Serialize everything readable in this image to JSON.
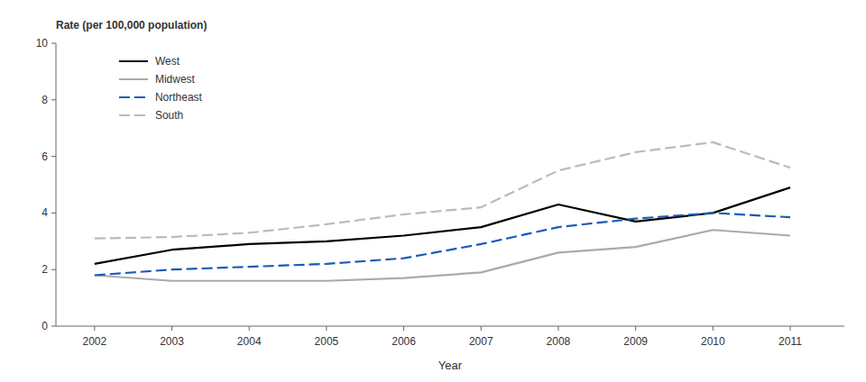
{
  "chart_data": {
    "type": "line",
    "ylabel": "Rate (per 100,000 population)",
    "xlabel": "Year",
    "x": [
      2002,
      2003,
      2004,
      2005,
      2006,
      2007,
      2008,
      2009,
      2010,
      2011
    ],
    "series": [
      {
        "name": "West",
        "color": "#000000",
        "line_style": "solid",
        "values": [
          2.2,
          2.7,
          2.9,
          3.0,
          3.2,
          3.5,
          4.3,
          3.7,
          4.0,
          4.9
        ]
      },
      {
        "name": "Midwest",
        "color": "#aaaaaa",
        "line_style": "solid",
        "values": [
          1.8,
          1.6,
          1.6,
          1.6,
          1.7,
          1.9,
          2.6,
          2.8,
          3.4,
          3.2
        ]
      },
      {
        "name": "Northeast",
        "color": "#1f5ab5",
        "line_style": "dashed",
        "values": [
          1.8,
          2.0,
          2.1,
          2.2,
          2.4,
          2.9,
          3.5,
          3.8,
          4.0,
          3.85
        ]
      },
      {
        "name": "South",
        "color": "#bbbbbb",
        "line_style": "dashed",
        "values": [
          3.1,
          3.15,
          3.3,
          3.6,
          3.95,
          4.2,
          5.5,
          6.15,
          6.5,
          5.6
        ]
      }
    ],
    "xlim": [
      2001.5,
      2011.7
    ],
    "xticks": [
      2002,
      2003,
      2004,
      2005,
      2006,
      2007,
      2008,
      2009,
      2010,
      2011
    ],
    "ylim": [
      0,
      10
    ],
    "yticks": [
      0,
      2,
      4,
      6,
      8,
      10
    ],
    "grid": false,
    "legend": "upper left"
  }
}
